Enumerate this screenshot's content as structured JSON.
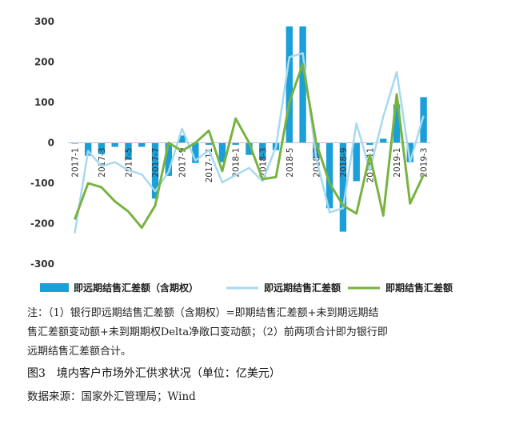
{
  "chart_data": {
    "type": "bar",
    "x": [
      "2017-1",
      "2017-2",
      "2017-3",
      "2017-4",
      "2017-5",
      "2017-6",
      "2017-7",
      "2017-8",
      "2017-9",
      "2017-10",
      "2017-11",
      "2017-12",
      "2018-1",
      "2018-2",
      "2018-3",
      "2018-4",
      "2018-5",
      "2018-6",
      "2018-7",
      "2018-8",
      "2018-9",
      "2018-10",
      "2018-11",
      "2018-12",
      "2019-1",
      "2019-2",
      "2019-3"
    ],
    "tick_labels": [
      "2017-1",
      "2017-3",
      "2017-5",
      "2017-7",
      "2017-9",
      "2017-11",
      "2018-1",
      "2018-3",
      "2018-5",
      "2018-7",
      "2018-9",
      "2018-11",
      "2019-1",
      "2019-3"
    ],
    "ylim": [
      -300,
      300
    ],
    "yticks": [
      -300,
      -200,
      -100,
      0,
      100,
      200,
      300
    ],
    "legend_position": "bottom",
    "series": [
      {
        "name": "即远期结售汇差额（含期权）",
        "type": "bar",
        "color": "#1a9fd8",
        "values": [
          -2,
          -32,
          -28,
          -10,
          -42,
          -10,
          -138,
          -82,
          18,
          -50,
          -5,
          -48,
          -5,
          -30,
          -42,
          -18,
          288,
          288,
          -38,
          -162,
          -220,
          -95,
          -5,
          10,
          95,
          -48,
          113
        ]
      },
      {
        "name": "即远期结售汇差额",
        "type": "line",
        "color": "#a7d9f0",
        "values": [
          -224,
          -20,
          -58,
          -48,
          -68,
          -78,
          -120,
          -72,
          35,
          -44,
          -18,
          -98,
          -80,
          -62,
          -95,
          -10,
          212,
          222,
          -38,
          -172,
          -162,
          48,
          -68,
          65,
          175,
          -48,
          67
        ]
      },
      {
        "name": "即期结售汇差额",
        "type": "line",
        "color": "#78b340",
        "values": [
          -190,
          -100,
          -110,
          -145,
          -170,
          -210,
          -155,
          0,
          -20,
          0,
          30,
          -70,
          60,
          0,
          -90,
          -85,
          100,
          195,
          0,
          -100,
          -155,
          -175,
          -30,
          -180,
          120,
          -150,
          -80
        ]
      }
    ]
  },
  "note": {
    "line1": "注：（1）银行即远期结售汇差额（含期权）=即期结售汇差额+未到期远期结",
    "line2": "售汇差额变动额+未到期期权Delta净敞口变动额；（2）前两项合计即为银行即",
    "line3": "远期结售汇差额合计。"
  },
  "caption": "图3　境内客户市场外汇供求状况（单位：亿美元）",
  "source": "数据来源：国家外汇管理局；Wind"
}
